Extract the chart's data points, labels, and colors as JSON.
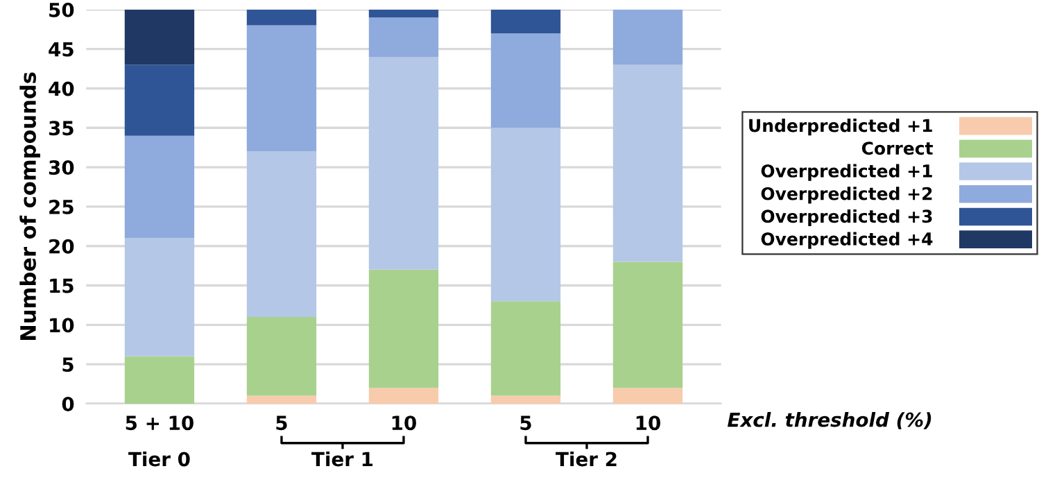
{
  "chart_data": {
    "type": "bar",
    "stacked": true,
    "ylabel": "Number of compounds",
    "categories": [
      "5 + 10",
      "5",
      "10",
      "5",
      "10"
    ],
    "series": [
      {
        "name": "Underpredicted +1",
        "color": "#f8cbad",
        "values": [
          0,
          1,
          2,
          1,
          2
        ]
      },
      {
        "name": "Correct",
        "color": "#a9d18e",
        "values": [
          6,
          10,
          15,
          12,
          16
        ]
      },
      {
        "name": "Overpredicted +1",
        "color": "#b4c7e7",
        "values": [
          15,
          21,
          27,
          22,
          25
        ]
      },
      {
        "name": "Overpredicted +2",
        "color": "#8faadc",
        "values": [
          13,
          16,
          5,
          12,
          7
        ]
      },
      {
        "name": "Overpredicted +3",
        "color": "#2f5597",
        "values": [
          9,
          2,
          1,
          3,
          0
        ]
      },
      {
        "name": "Overpredicted +4",
        "color": "#203864",
        "values": [
          7,
          0,
          0,
          0,
          0
        ]
      }
    ],
    "ylim": [
      0,
      50
    ],
    "yticks": [
      0,
      5,
      10,
      15,
      20,
      25,
      30,
      35,
      40,
      45,
      50
    ],
    "grid": "y",
    "legend": "right",
    "annotations": [
      "Excl. threshold (%)",
      "Tier 0",
      "Tier 1",
      "Tier 2"
    ]
  }
}
